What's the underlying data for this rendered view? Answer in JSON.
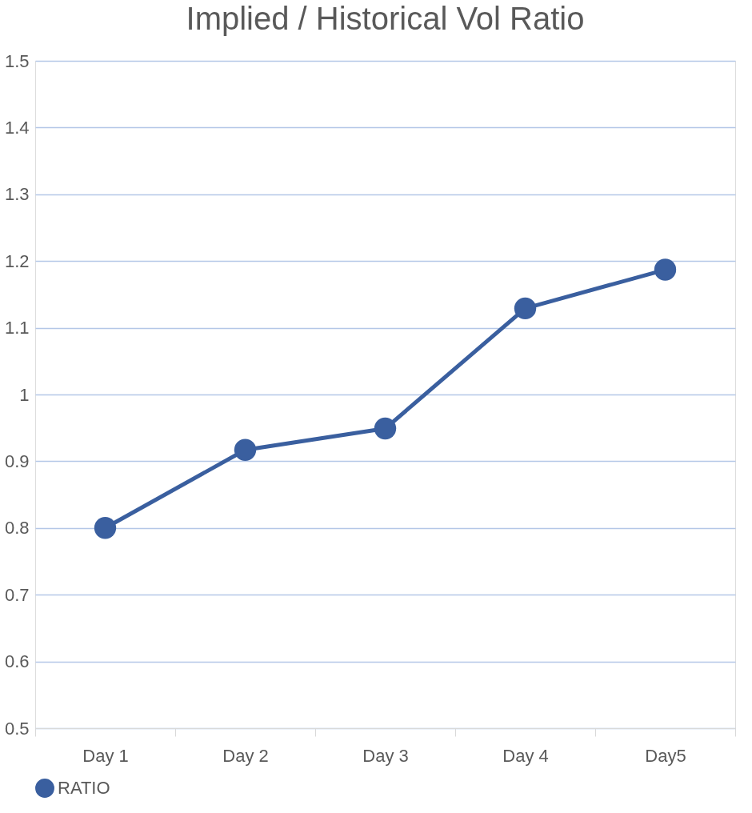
{
  "chart_data": {
    "type": "line",
    "title": "Implied / Historical Vol Ratio",
    "categories": [
      "Day 1",
      "Day 2",
      "Day 3",
      "Day 4",
      "Day5"
    ],
    "series": [
      {
        "name": "RATIO",
        "color": "#3a5f9f",
        "values": [
          0.8,
          0.917,
          0.949,
          1.129,
          1.187
        ]
      }
    ],
    "ylim": [
      0.5,
      1.5
    ],
    "yticks": [
      0.5,
      0.6,
      0.7,
      0.8,
      0.9,
      1,
      1.1,
      1.2,
      1.3,
      1.4,
      1.5
    ],
    "grid": "y",
    "legend": "bottom",
    "marker": "circle"
  }
}
